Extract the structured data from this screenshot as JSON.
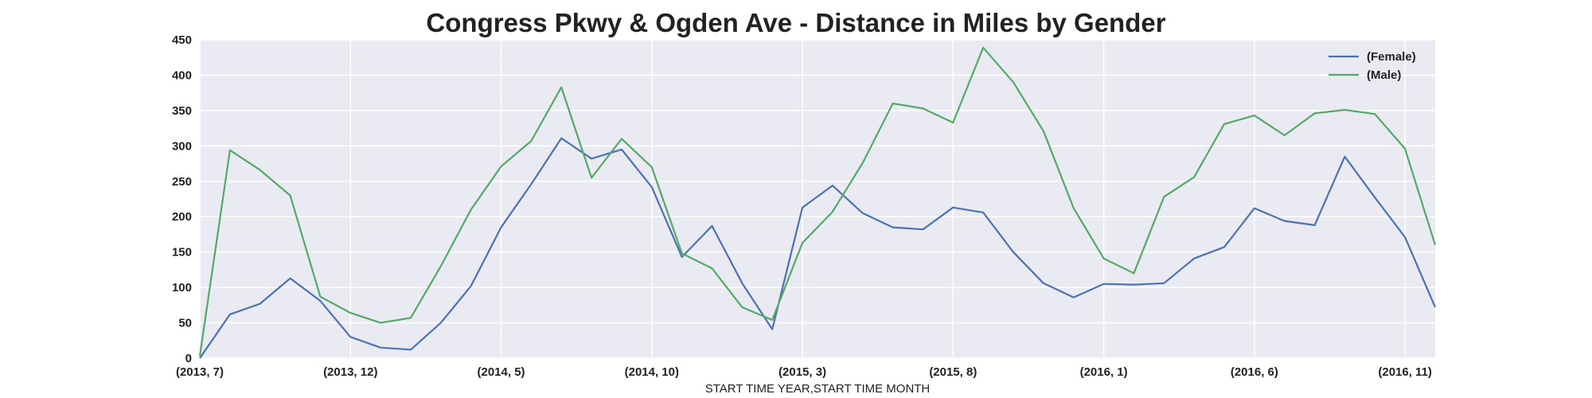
{
  "chart_data": {
    "type": "line",
    "title": "Congress Pkwy & Ogden Ave - Distance in Miles by Gender",
    "xlabel": "START TIME YEAR,START TIME MONTH",
    "ylabel": "",
    "ylim": [
      0,
      450
    ],
    "yticks": [
      0,
      50,
      100,
      150,
      200,
      250,
      300,
      350,
      400,
      450
    ],
    "grid": true,
    "legend_position": "top-right",
    "x_tick_labels": [
      "(2013, 7)",
      "(2013, 12)",
      "(2014, 5)",
      "(2014, 10)",
      "(2015, 3)",
      "(2015, 8)",
      "(2016, 1)",
      "(2016, 6)",
      "(2016, 11)"
    ],
    "x_tick_positions": [
      0,
      5,
      10,
      15,
      20,
      25,
      30,
      35,
      40
    ],
    "categories": [
      "(2013, 7)",
      "(2013, 8)",
      "(2013, 9)",
      "(2013, 10)",
      "(2013, 11)",
      "(2013, 12)",
      "(2014, 1)",
      "(2014, 2)",
      "(2014, 3)",
      "(2014, 4)",
      "(2014, 5)",
      "(2014, 6)",
      "(2014, 7)",
      "(2014, 8)",
      "(2014, 9)",
      "(2014, 10)",
      "(2014, 11)",
      "(2014, 12)",
      "(2015, 1)",
      "(2015, 2)",
      "(2015, 3)",
      "(2015, 4)",
      "(2015, 5)",
      "(2015, 6)",
      "(2015, 7)",
      "(2015, 8)",
      "(2015, 9)",
      "(2015, 10)",
      "(2015, 11)",
      "(2015, 12)",
      "(2016, 1)",
      "(2016, 2)",
      "(2016, 3)",
      "(2016, 4)",
      "(2016, 5)",
      "(2016, 6)",
      "(2016, 7)",
      "(2016, 8)",
      "(2016, 9)",
      "(2016, 10)",
      "(2016, 11)",
      "(2016, 12)"
    ],
    "series": [
      {
        "name": "(Female)",
        "color": "#4c72b0",
        "values": [
          0,
          62,
          77,
          113,
          81,
          30,
          15,
          12,
          50,
          102,
          185,
          246,
          311,
          282,
          295,
          242,
          143,
          187,
          106,
          41,
          213,
          244,
          205,
          185,
          182,
          213,
          206,
          150,
          106,
          86,
          105,
          104,
          106,
          141,
          157,
          212,
          194,
          188,
          285,
          227,
          171,
          72
        ]
      },
      {
        "name": "(Male)",
        "color": "#55a868",
        "values": [
          3,
          294,
          266,
          230,
          87,
          64,
          50,
          57,
          130,
          210,
          271,
          307,
          383,
          255,
          310,
          270,
          148,
          127,
          72,
          54,
          163,
          207,
          276,
          360,
          353,
          333,
          439,
          390,
          321,
          212,
          141,
          120,
          228,
          256,
          331,
          343,
          315,
          346,
          351,
          345,
          296,
          160
        ]
      }
    ]
  }
}
